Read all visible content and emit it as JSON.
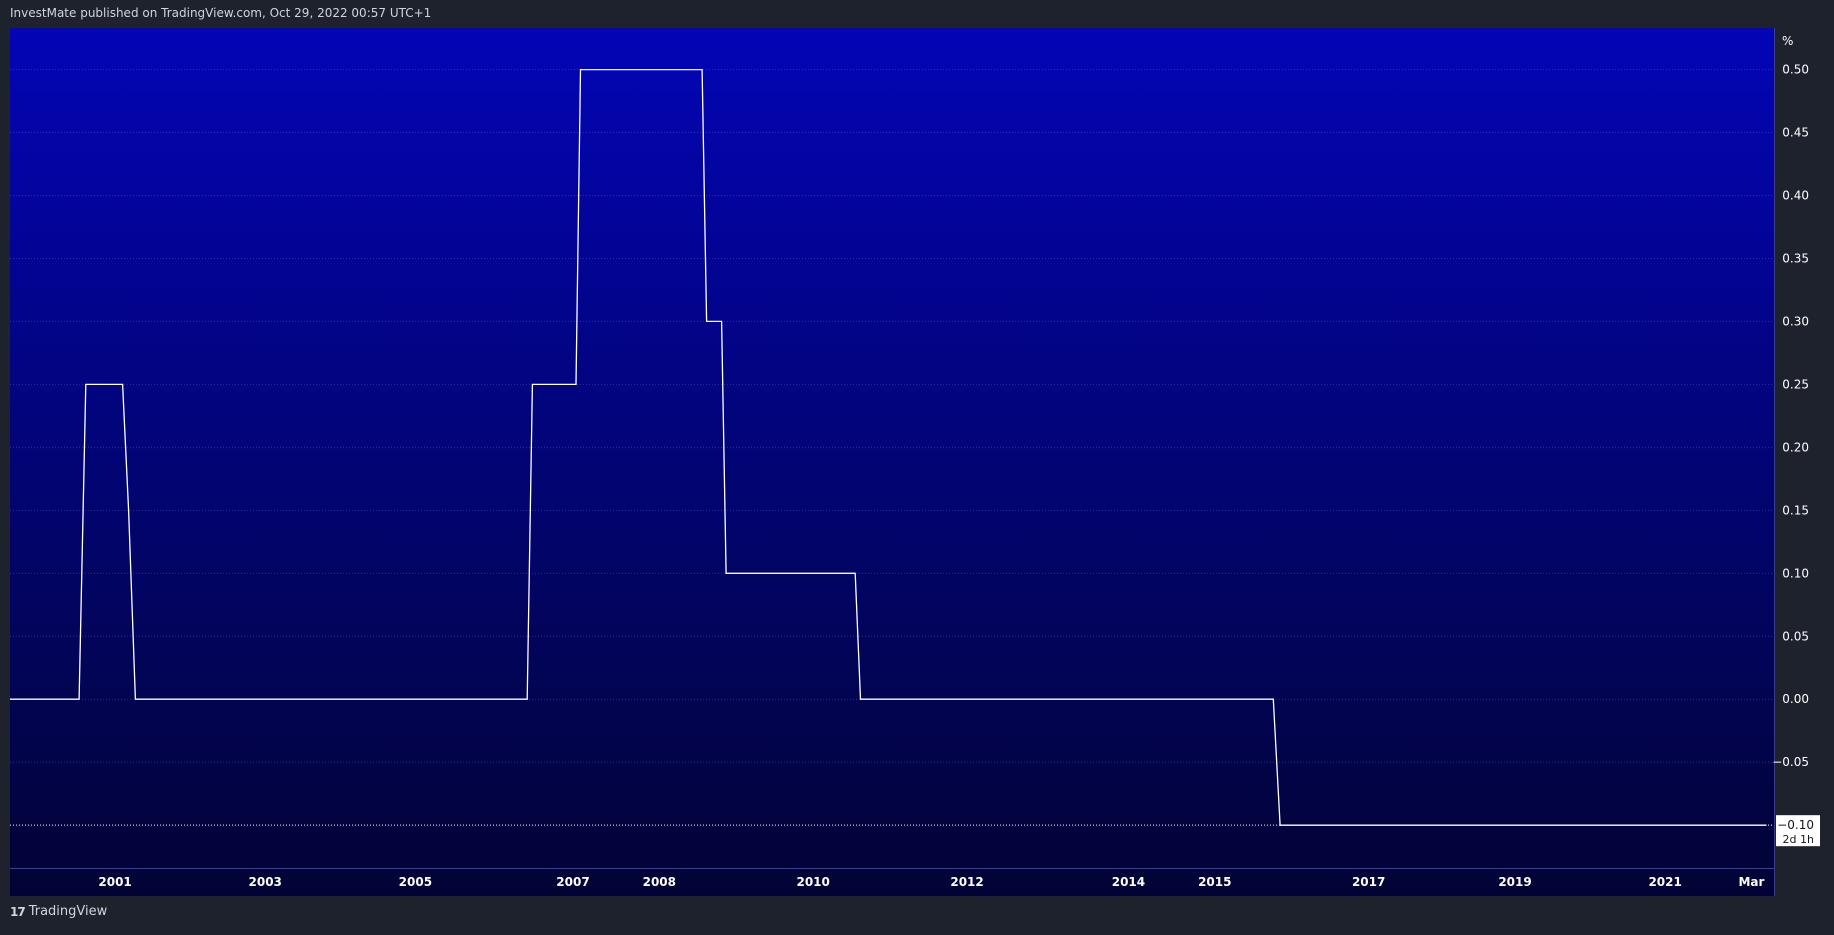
{
  "header": {
    "publisher_text": "InvestMate published on TradingView.com, Oct 29, 2022 00:57 UTC+1"
  },
  "footer": {
    "brand_mark": "17",
    "brand": "TradingView"
  },
  "chart_data": {
    "type": "line",
    "unit_label": "%",
    "y_ticks": [
      0.5,
      0.45,
      0.4,
      0.35,
      0.3,
      0.25,
      0.2,
      0.15,
      0.1,
      0.05,
      0.0,
      -0.05
    ],
    "ylim": [
      -0.134,
      0.533
    ],
    "xlim": [
      1999.5,
      2023.0
    ],
    "x_ticks": [
      {
        "label": "2001",
        "x": 2000.9
      },
      {
        "label": "2003",
        "x": 2002.9
      },
      {
        "label": "2005",
        "x": 2004.9
      },
      {
        "label": "2007",
        "x": 2007.0
      },
      {
        "label": "2008",
        "x": 2008.15
      },
      {
        "label": "2010",
        "x": 2010.2
      },
      {
        "label": "2012",
        "x": 2012.25
      },
      {
        "label": "2014",
        "x": 2014.4
      },
      {
        "label": "2015",
        "x": 2015.55
      },
      {
        "label": "2017",
        "x": 2017.6
      },
      {
        "label": "2019",
        "x": 2019.55
      },
      {
        "label": "2021",
        "x": 2021.55
      },
      {
        "label": "Mar",
        "x": 2022.7
      }
    ],
    "series": [
      {
        "color": "#ffffff",
        "x": [
          1999.5,
          2000.42,
          2000.51,
          2001.0,
          2001.08,
          2001.17,
          2006.39,
          2006.46,
          2007.04,
          2007.1,
          2008.72,
          2008.78,
          2008.98,
          2009.04,
          2010.76,
          2010.83,
          2016.33,
          2016.42,
          2022.9
        ],
        "y": [
          0.0,
          0.0,
          0.25,
          0.25,
          0.15,
          0.0,
          0.0,
          0.25,
          0.25,
          0.5,
          0.5,
          0.3,
          0.3,
          0.1,
          0.1,
          0.0,
          0.0,
          -0.1,
          -0.1
        ]
      }
    ],
    "last_value": {
      "value_label": "−0.10",
      "countdown": "2d 1h",
      "y": -0.1
    },
    "grid": true,
    "legend": "none"
  }
}
